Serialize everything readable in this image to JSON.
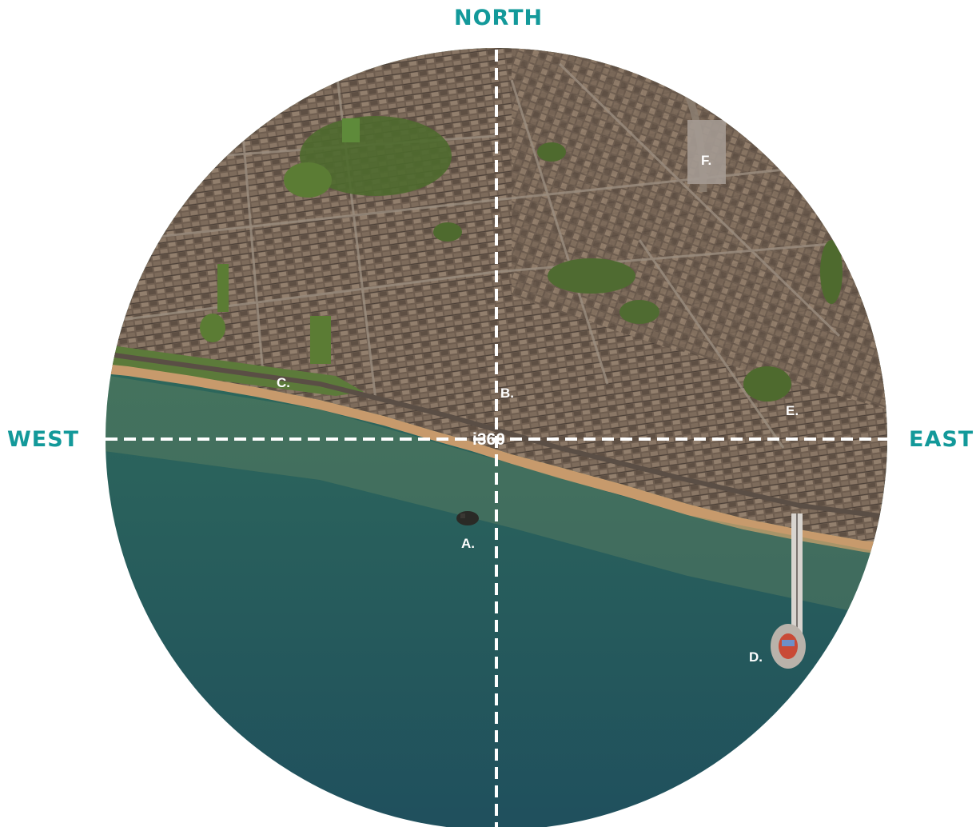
{
  "colors": {
    "label": "#13999a",
    "sea": "#2f6a5b",
    "sea_deep": "#1f4f5d",
    "land": "#6f5e50",
    "beach": "#c79a6c",
    "park": "#4e6a2e",
    "crosshair": "#ffffff"
  },
  "compass": {
    "north": "NORTH",
    "west": "WEST",
    "east": "EAST"
  },
  "center_label": "i360",
  "markers": {
    "a": "A.",
    "b": "B.",
    "c": "C.",
    "d": "D.",
    "e": "E.",
    "f": "F."
  },
  "icons": {
    "map": "aerial-map-disc",
    "crosshair": "dashed-crosshair"
  }
}
